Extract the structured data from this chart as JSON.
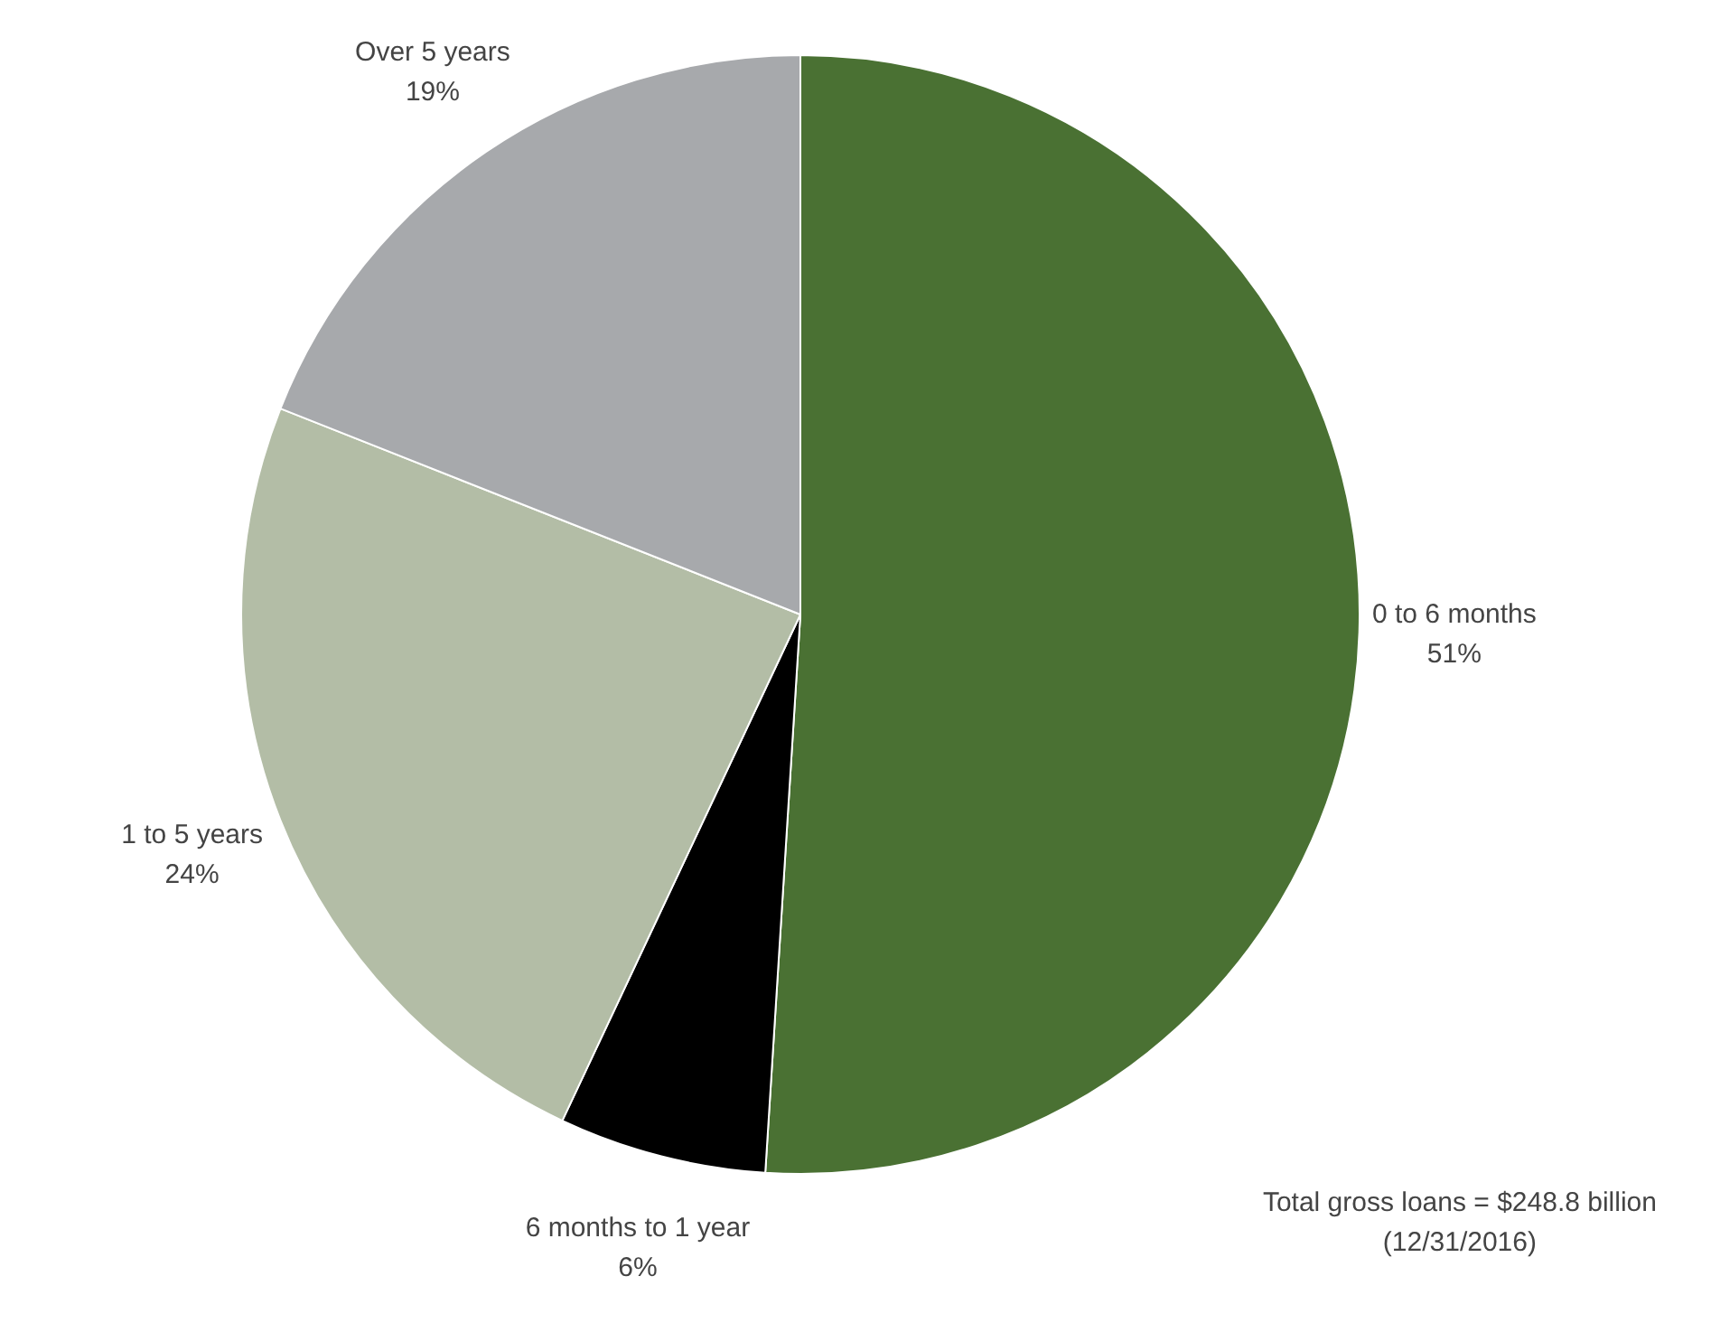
{
  "chart_data": {
    "type": "pie",
    "categories": [
      "0 to 6 months",
      "6 months to 1 year",
      "1 to 5 years",
      "Over 5 years"
    ],
    "values": [
      51,
      6,
      24,
      19
    ],
    "value_labels": [
      "51%",
      "6%",
      "24%",
      "19%"
    ],
    "colors": [
      "#4a7133",
      "#000000",
      "#b3bda6",
      "#a7a9ac"
    ],
    "legend": false,
    "annotations": [
      "Total gross loans = $248.8 billion",
      "(12/31/2016)"
    ]
  }
}
